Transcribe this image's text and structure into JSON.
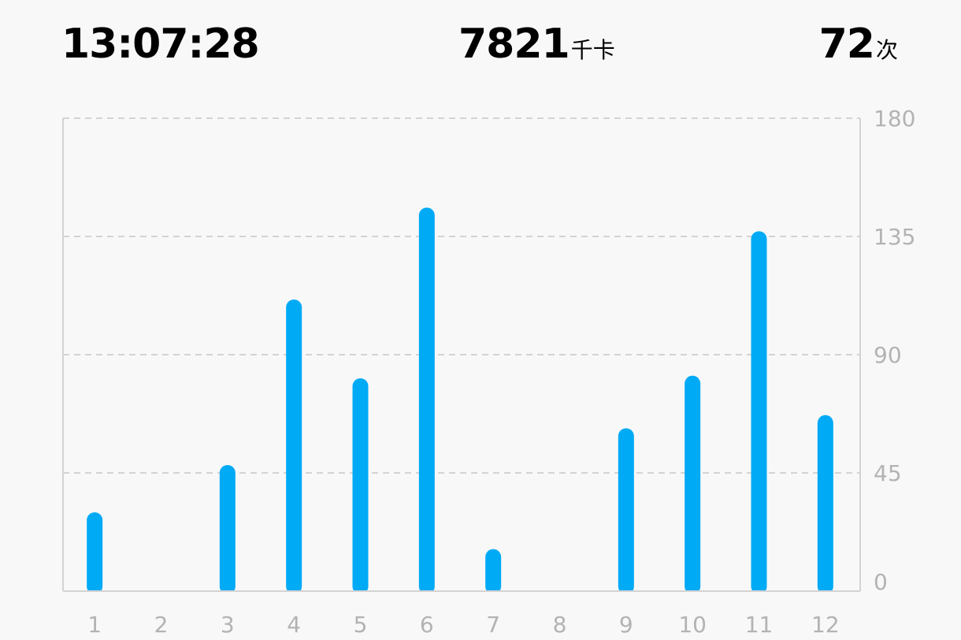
{
  "header": {
    "time": "13:07:28",
    "calories": "7821",
    "calories_unit": "千卡",
    "count": "72",
    "count_unit": "次"
  },
  "colors": {
    "bar": "#00aaf5",
    "grid": "#d3d3d3",
    "tick_text": "#b3b3b3",
    "background": "#f8f8f8"
  },
  "chart_data": {
    "type": "bar",
    "title": "",
    "xlabel": "",
    "ylabel": "",
    "categories": [
      "1",
      "2",
      "3",
      "4",
      "5",
      "6",
      "7",
      "8",
      "9",
      "10",
      "11",
      "12"
    ],
    "values": [
      30,
      0,
      48,
      111,
      81,
      146,
      16,
      0,
      62,
      82,
      137,
      67
    ],
    "ylim": [
      0,
      180
    ],
    "yticks": [
      "0",
      "45",
      "90",
      "135",
      "180"
    ],
    "y_axis_position": "right",
    "grid": true
  }
}
